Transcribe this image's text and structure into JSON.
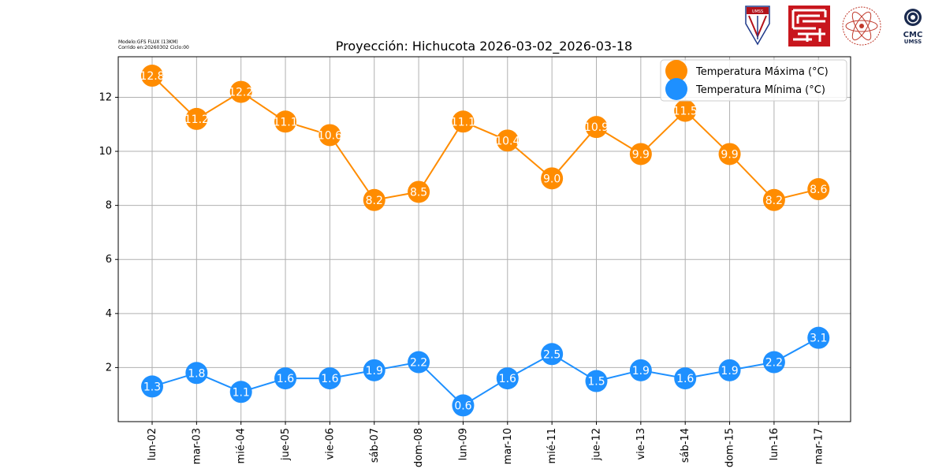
{
  "meta": {
    "model": "Modelo:GFS FLUX (13KM)",
    "run": "Corrido en:20260302 Ciclo:00"
  },
  "logos": {
    "cmc_line1": "CMC",
    "cmc_line2": "UMSS",
    "umss_text": "UMSS"
  },
  "chart_data": {
    "type": "line",
    "title": "Proyección: Hichucota 2026-03-02_2026-03-18",
    "xlabel": "",
    "ylabel": "",
    "categories": [
      "lun-02",
      "mar-03",
      "mié-04",
      "jue-05",
      "vie-06",
      "sáb-07",
      "dom-08",
      "lun-09",
      "mar-10",
      "mié-11",
      "jue-12",
      "vie-13",
      "sáb-14",
      "dom-15",
      "lun-16",
      "mar-17"
    ],
    "ylim": [
      0,
      13.5
    ],
    "yticks": [
      2,
      4,
      6,
      8,
      10,
      12
    ],
    "grid": true,
    "legend_position": "upper right",
    "series": [
      {
        "name": "Temperatura Máxima  (°C)",
        "color": "#ff8c00",
        "values": [
          12.8,
          11.2,
          12.2,
          11.1,
          10.6,
          8.2,
          8.5,
          11.1,
          10.4,
          9.0,
          10.9,
          9.9,
          11.5,
          9.9,
          8.2,
          8.6
        ]
      },
      {
        "name": "Temperatura Mínima  (°C)",
        "color": "#1e90ff",
        "values": [
          1.3,
          1.8,
          1.1,
          1.6,
          1.6,
          1.9,
          2.2,
          0.6,
          1.6,
          2.5,
          1.5,
          1.9,
          1.6,
          1.9,
          2.2,
          3.1
        ]
      }
    ]
  }
}
